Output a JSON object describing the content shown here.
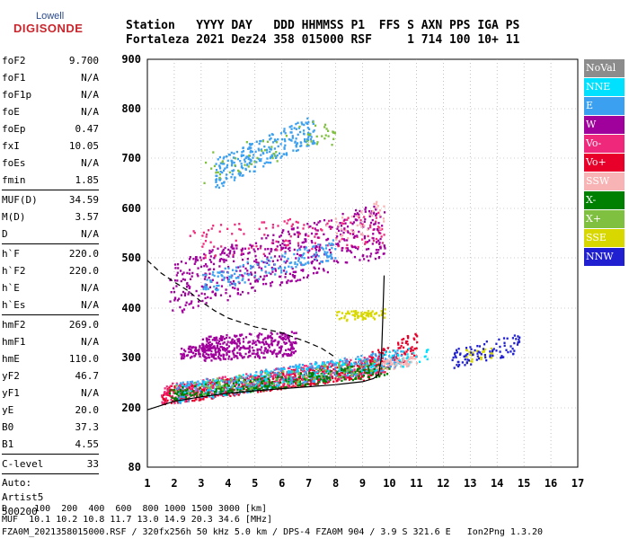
{
  "logo": {
    "line1": "Lowell",
    "line2": "DIGISONDE"
  },
  "header": {
    "line1": "Station   YYYY DAY   DDD HHMMSS P1  FFS S AXN PPS IGA PS",
    "line2": "Fortaleza 2021 Dez24 358 015000 RSF     1 714 100 10+ 11"
  },
  "params": [
    {
      "name": "foF2",
      "value": "9.700"
    },
    {
      "name": "foF1",
      "value": "N/A"
    },
    {
      "name": "foF1p",
      "value": "N/A"
    },
    {
      "name": "foE",
      "value": "N/A"
    },
    {
      "name": "foEp",
      "value": "0.47"
    },
    {
      "name": "fxI",
      "value": "10.05"
    },
    {
      "name": "foEs",
      "value": "N/A"
    },
    {
      "name": "fmin",
      "value": "1.85"
    },
    {
      "name": "MUF(D)",
      "value": "34.59"
    },
    {
      "name": "M(D)",
      "value": "3.57"
    },
    {
      "name": "D",
      "value": "N/A"
    },
    {
      "name": "h`F",
      "value": "220.0"
    },
    {
      "name": "h`F2",
      "value": "220.0"
    },
    {
      "name": "h`E",
      "value": "N/A"
    },
    {
      "name": "h`Es",
      "value": "N/A"
    },
    {
      "name": "hmF2",
      "value": "269.0"
    },
    {
      "name": "hmF1",
      "value": "N/A"
    },
    {
      "name": "hmE",
      "value": "110.0"
    },
    {
      "name": "yF2",
      "value": "46.7"
    },
    {
      "name": "yF1",
      "value": "N/A"
    },
    {
      "name": "yE",
      "value": "20.0"
    },
    {
      "name": "B0",
      "value": "37.3"
    },
    {
      "name": "B1",
      "value": "4.55"
    },
    {
      "name": "C-level",
      "value": "33"
    }
  ],
  "auto": [
    "Auto:",
    "Artist5",
    "500200"
  ],
  "legend": [
    {
      "label": "NoVal",
      "color": "#8c8c8c"
    },
    {
      "label": "NNE",
      "color": "#00e0ff"
    },
    {
      "label": "E",
      "color": "#3ca0f0"
    },
    {
      "label": "W",
      "color": "#a0009c"
    },
    {
      "label": "Vo-",
      "color": "#f0287c"
    },
    {
      "label": "Vo+",
      "color": "#e8002a"
    },
    {
      "label": "SSW",
      "color": "#f8b4b4"
    },
    {
      "label": "X-",
      "color": "#008000"
    },
    {
      "label": "X+",
      "color": "#80c040"
    },
    {
      "label": "SSE",
      "color": "#d8d800"
    },
    {
      "label": "NNW",
      "color": "#2020d0"
    }
  ],
  "footer": {
    "line1": "D     100  200  400  600  800 1000 1500 3000 [km]",
    "line2": "MUF  10.1 10.2 10.8 11.7 13.0 14.9 20.3 34.6 [MHz]",
    "line3": "FZA0M_2021358015000.RSF / 320fx256h 50 kHz 5.0 km / DPS-4 FZA0M 904 / 3.9 S 321.6 E   Ion2Png 1.3.20"
  },
  "chart_data": {
    "type": "scatter",
    "xlim": [
      1,
      17
    ],
    "ylim": [
      80,
      900
    ],
    "xticks": [
      1,
      2,
      3,
      4,
      5,
      6,
      7,
      8,
      9,
      10,
      11,
      12,
      13,
      14,
      15,
      16,
      17
    ],
    "yticks": [
      80,
      200,
      300,
      400,
      500,
      600,
      700,
      800,
      900
    ],
    "grid": "dotted",
    "legend_position": "right",
    "series": [
      {
        "name": "Vo+",
        "color": "#e8002a",
        "regions": [
          {
            "x": [
              1.5,
              9.8
            ],
            "y0": [
              225,
              285
            ],
            "spread": 18,
            "n": 700
          },
          {
            "x": [
              9.0,
              11.0
            ],
            "y0": [
              280,
              330
            ],
            "spread": 25,
            "n": 120
          }
        ]
      },
      {
        "name": "Vo-",
        "color": "#f0287c",
        "regions": [
          {
            "x": [
              1.5,
              9.8
            ],
            "y0": [
              228,
              290
            ],
            "spread": 20,
            "n": 300
          },
          {
            "x": [
              2.5,
              9.8
            ],
            "y0": [
              530,
              560
            ],
            "spread": 35,
            "n": 150
          }
        ]
      },
      {
        "name": "W",
        "color": "#a0009c",
        "regions": [
          {
            "x": [
              1.8,
              9.8
            ],
            "y0": [
              440,
              560
            ],
            "spread": 55,
            "n": 550
          },
          {
            "x": [
              3.0,
              6.5
            ],
            "y0": [
              320,
              330
            ],
            "spread": 25,
            "n": 380
          },
          {
            "x": [
              2.2,
              3.5
            ],
            "y0": [
              310,
              320
            ],
            "spread": 12,
            "n": 80
          }
        ]
      },
      {
        "name": "E",
        "color": "#3ca0f0",
        "regions": [
          {
            "x": [
              2.0,
              10.5
            ],
            "y0": [
              230,
              300
            ],
            "spread": 20,
            "n": 350
          },
          {
            "x": [
              3.5,
              7.2
            ],
            "y0": [
              670,
              760
            ],
            "spread": 30,
            "n": 260
          },
          {
            "x": [
              3.0,
              8.0
            ],
            "y0": [
              450,
              520
            ],
            "spread": 20,
            "n": 160
          }
        ]
      },
      {
        "name": "NNE",
        "color": "#00e0ff",
        "regions": [
          {
            "x": [
              2.0,
              11.5
            ],
            "y0": [
              228,
              310
            ],
            "spread": 18,
            "n": 220
          }
        ]
      },
      {
        "name": "X-",
        "color": "#008000",
        "regions": [
          {
            "x": [
              1.8,
              10.0
            ],
            "y0": [
              228,
              280
            ],
            "spread": 14,
            "n": 250
          }
        ]
      },
      {
        "name": "X+",
        "color": "#80c040",
        "regions": [
          {
            "x": [
              3.0,
              8.0
            ],
            "y0": [
              680,
              760
            ],
            "spread": 30,
            "n": 60
          },
          {
            "x": [
              2.0,
              10.0
            ],
            "y0": [
              235,
              290
            ],
            "spread": 15,
            "n": 90
          }
        ]
      },
      {
        "name": "SSE",
        "color": "#d8d800",
        "regions": [
          {
            "x": [
              8.0,
              9.8
            ],
            "y0": [
              385,
              390
            ],
            "spread": 10,
            "n": 70
          },
          {
            "x": [
              12.8,
              13.8
            ],
            "y0": [
              305,
              310
            ],
            "spread": 15,
            "n": 30
          }
        ]
      },
      {
        "name": "SSW",
        "color": "#f8b4b4",
        "regions": [
          {
            "x": [
              9.5,
              11.0
            ],
            "y0": [
              285,
              295
            ],
            "spread": 10,
            "n": 60
          },
          {
            "x": [
              7.5,
              9.8
            ],
            "y0": [
              555,
              590
            ],
            "spread": 30,
            "n": 40
          }
        ]
      },
      {
        "name": "NNW",
        "color": "#2020d0",
        "regions": [
          {
            "x": [
              12.3,
              14.8
            ],
            "y0": [
              300,
              330
            ],
            "spread": 20,
            "n": 90
          }
        ]
      }
    ],
    "curves": [
      {
        "style": "solid",
        "points": [
          [
            1.0,
            196
          ],
          [
            2.0,
            213
          ],
          [
            3.0,
            222
          ],
          [
            4.0,
            229
          ],
          [
            5.0,
            234
          ],
          [
            6.0,
            238
          ],
          [
            7.0,
            242
          ],
          [
            8.0,
            246
          ],
          [
            9.0,
            252
          ],
          [
            9.4,
            258
          ],
          [
            9.6,
            266
          ],
          [
            9.7,
            300
          ],
          [
            9.75,
            380
          ],
          [
            9.8,
            465
          ]
        ]
      },
      {
        "style": "dashed",
        "points": [
          [
            1.0,
            495
          ],
          [
            1.5,
            470
          ],
          [
            2.0,
            452
          ],
          [
            2.5,
            435
          ],
          [
            3.0,
            413
          ],
          [
            3.5,
            395
          ],
          [
            4.0,
            380
          ],
          [
            5.0,
            362
          ],
          [
            6.0,
            350
          ],
          [
            7.0,
            330
          ],
          [
            7.5,
            318
          ],
          [
            8.0,
            300
          ]
        ]
      }
    ]
  }
}
